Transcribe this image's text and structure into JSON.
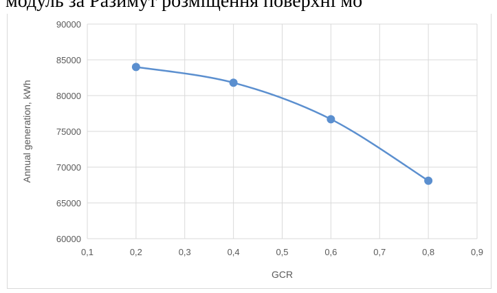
{
  "caption": {
    "text": "модуль за  Разимут розміщення поверхні мо"
  },
  "chart_data": {
    "type": "line",
    "title": "",
    "xlabel": "GCR",
    "ylabel": "Annual generation, kWh",
    "x_ticks": [
      "0,1",
      "0,2",
      "0,3",
      "0,4",
      "0,5",
      "0,6",
      "0,7",
      "0,8",
      "0,9"
    ],
    "x_tick_values": [
      0.1,
      0.2,
      0.3,
      0.4,
      0.5,
      0.6,
      0.7,
      0.8,
      0.9
    ],
    "y_ticks": [
      "60000",
      "65000",
      "70000",
      "75000",
      "80000",
      "85000",
      "90000"
    ],
    "y_tick_values": [
      60000,
      65000,
      70000,
      75000,
      80000,
      85000,
      90000
    ],
    "xlim": [
      0.1,
      0.9
    ],
    "ylim": [
      60000,
      90000
    ],
    "grid": true,
    "legend": "none",
    "series": [
      {
        "x": [
          0.2,
          0.4,
          0.6,
          0.8
        ],
        "y": [
          84000,
          81800,
          76700,
          68100
        ],
        "color": "#5b8fcf",
        "smooth": true
      }
    ]
  }
}
